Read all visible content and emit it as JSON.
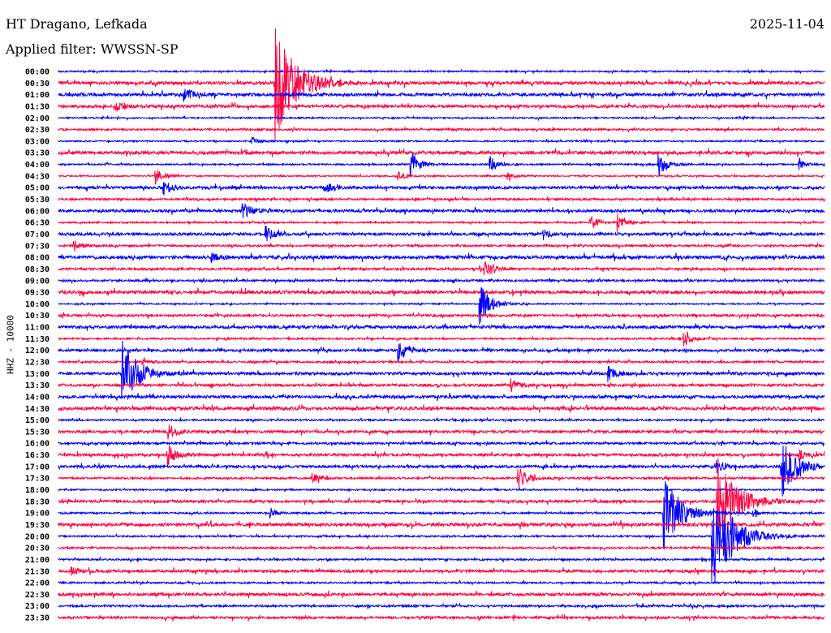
{
  "header": {
    "station": "HT Dragano, Lefkada",
    "filter": "Applied filter: WWSSN-SP",
    "date": "2025-11-04"
  },
  "chart_data": {
    "type": "helicorder",
    "title": "HT Dragano, Lefkada",
    "ylabel": "HHZ - 10000",
    "row_minutes": 30,
    "colors": {
      "even": "#0000ff",
      "odd": "#ff0040"
    },
    "rows": [
      "00:00",
      "00:30",
      "01:00",
      "01:30",
      "02:00",
      "02:30",
      "03:00",
      "03:30",
      "04:00",
      "04:30",
      "05:00",
      "05:30",
      "06:00",
      "06:30",
      "07:00",
      "07:30",
      "08:00",
      "08:30",
      "09:00",
      "09:30",
      "10:00",
      "10:30",
      "11:00",
      "11:30",
      "12:00",
      "12:30",
      "13:00",
      "13:30",
      "14:00",
      "14:30",
      "15:00",
      "15:30",
      "16:00",
      "16:30",
      "17:00",
      "17:30",
      "18:00",
      "18:30",
      "19:00",
      "19:30",
      "20:00",
      "20:30",
      "21:00",
      "21:30",
      "22:00",
      "22:30",
      "23:00",
      "23:30"
    ],
    "events": [
      {
        "row": 1,
        "minute": 8.5,
        "amp": 70
      },
      {
        "row": 2,
        "minute": 4.9,
        "amp": 10
      },
      {
        "row": 3,
        "minute": 2.2,
        "amp": 8
      },
      {
        "row": 6,
        "minute": 7.5,
        "amp": 6
      },
      {
        "row": 8,
        "minute": 13.8,
        "amp": 15
      },
      {
        "row": 8,
        "minute": 16.9,
        "amp": 10
      },
      {
        "row": 8,
        "minute": 23.5,
        "amp": 14
      },
      {
        "row": 8,
        "minute": 29.0,
        "amp": 6
      },
      {
        "row": 9,
        "minute": 3.8,
        "amp": 10
      },
      {
        "row": 9,
        "minute": 13.3,
        "amp": 6
      },
      {
        "row": 9,
        "minute": 17.6,
        "amp": 6
      },
      {
        "row": 10,
        "minute": 4.1,
        "amp": 10
      },
      {
        "row": 10,
        "minute": 10.4,
        "amp": 8
      },
      {
        "row": 12,
        "minute": 7.2,
        "amp": 12
      },
      {
        "row": 13,
        "minute": 20.8,
        "amp": 10
      },
      {
        "row": 13,
        "minute": 21.9,
        "amp": 12
      },
      {
        "row": 14,
        "minute": 8.1,
        "amp": 10
      },
      {
        "row": 14,
        "minute": 19.0,
        "amp": 6
      },
      {
        "row": 15,
        "minute": 0.6,
        "amp": 8
      },
      {
        "row": 16,
        "minute": 6.0,
        "amp": 5
      },
      {
        "row": 17,
        "minute": 16.7,
        "amp": 12
      },
      {
        "row": 20,
        "minute": 16.5,
        "amp": 25
      },
      {
        "row": 23,
        "minute": 24.5,
        "amp": 10
      },
      {
        "row": 24,
        "minute": 13.3,
        "amp": 15
      },
      {
        "row": 25,
        "minute": 3.3,
        "amp": 4
      },
      {
        "row": 26,
        "minute": 2.5,
        "amp": 45
      },
      {
        "row": 26,
        "minute": 21.5,
        "amp": 10
      },
      {
        "row": 27,
        "minute": 17.7,
        "amp": 8
      },
      {
        "row": 31,
        "minute": 4.3,
        "amp": 10
      },
      {
        "row": 33,
        "minute": 4.3,
        "amp": 12
      },
      {
        "row": 33,
        "minute": 29.0,
        "amp": 6
      },
      {
        "row": 34,
        "minute": 28.3,
        "amp": 40
      },
      {
        "row": 34,
        "minute": 25.8,
        "amp": 8
      },
      {
        "row": 35,
        "minute": 9.9,
        "amp": 8
      },
      {
        "row": 35,
        "minute": 18.0,
        "amp": 15
      },
      {
        "row": 37,
        "minute": 25.8,
        "amp": 60
      },
      {
        "row": 38,
        "minute": 23.7,
        "amp": 50
      },
      {
        "row": 38,
        "minute": 8.3,
        "amp": 6
      },
      {
        "row": 38,
        "minute": 27.2,
        "amp": 5
      },
      {
        "row": 40,
        "minute": 25.6,
        "amp": 70
      },
      {
        "row": 43,
        "minute": 0.5,
        "amp": 5
      }
    ]
  }
}
